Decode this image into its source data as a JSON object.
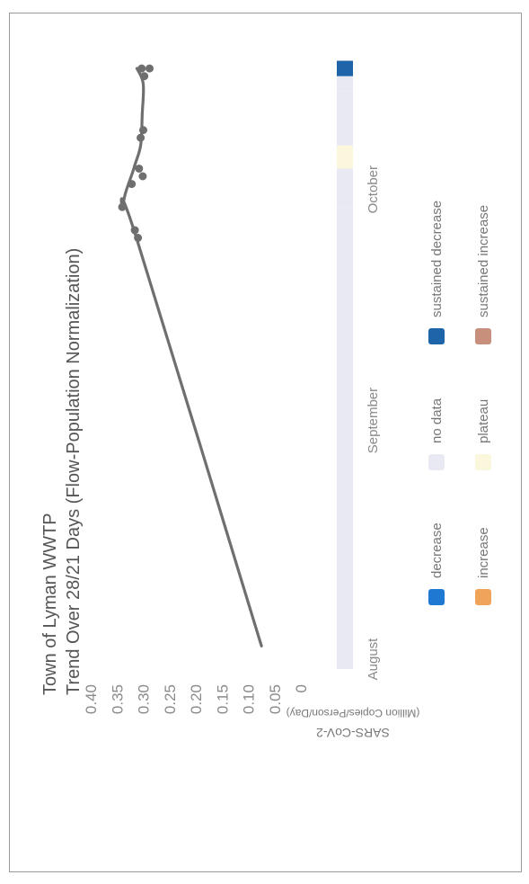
{
  "chart_data": {
    "type": "line",
    "title": "Town of Lyman WWTP",
    "subtitle": "Trend Over 28/21 Days (Flow-Population Normalization)",
    "ylabel": "SARS-CoV-2",
    "ylabel_units": "(Million Copies/Person/Day)",
    "ylim": [
      0,
      0.4
    ],
    "yticks": [
      "0",
      "0.05",
      "0.10",
      "0.15",
      "0.20",
      "0.25",
      "0.30",
      "0.35",
      "0.40"
    ],
    "x_tick_labels": [
      "August",
      "September",
      "October"
    ],
    "x_tick_day": [
      0,
      31,
      61
    ],
    "trend_line": [
      {
        "x": 3,
        "y": 0.075
      },
      {
        "x": 56,
        "y": 0.313
      },
      {
        "x": 60,
        "y": 0.338
      },
      {
        "x": 65,
        "y": 0.318
      },
      {
        "x": 68,
        "y": 0.305
      },
      {
        "x": 72,
        "y": 0.302
      },
      {
        "x": 76,
        "y": 0.3
      },
      {
        "x": 78,
        "y": 0.312
      }
    ],
    "samples": [
      {
        "x": 56,
        "y": 0.31
      },
      {
        "x": 57,
        "y": 0.316
      },
      {
        "x": 60,
        "y": 0.34
      },
      {
        "x": 63,
        "y": 0.322
      },
      {
        "x": 64,
        "y": 0.301
      },
      {
        "x": 65,
        "y": 0.308
      },
      {
        "x": 69,
        "y": 0.305
      },
      {
        "x": 70,
        "y": 0.3
      },
      {
        "x": 77,
        "y": 0.298
      },
      {
        "x": 78,
        "y": 0.288
      },
      {
        "x": 78,
        "y": 0.303
      }
    ],
    "trend_strip": [
      {
        "from": 0,
        "to": 56,
        "category": "no data"
      },
      {
        "from": 56,
        "to": 60,
        "category": "no data"
      },
      {
        "from": 60,
        "to": 65,
        "category": "no data"
      },
      {
        "from": 65,
        "to": 68,
        "category": "plateau"
      },
      {
        "from": 68,
        "to": 75,
        "category": "no data"
      },
      {
        "from": 75,
        "to": 77,
        "category": "no data"
      },
      {
        "from": 77,
        "to": 79,
        "category": "sustained decrease"
      }
    ],
    "legend": [
      {
        "label": "decrease",
        "color": "#1f78d2"
      },
      {
        "label": "no data",
        "color": "#e9e9f3"
      },
      {
        "label": "sustained decrease",
        "color": "#1d64a8"
      },
      {
        "label": "increase",
        "color": "#f0a45a"
      },
      {
        "label": "plateau",
        "color": "#fbf7dc"
      },
      {
        "label": "sustained increase",
        "color": "#c98f7d"
      }
    ],
    "legend_placement": "bottom",
    "grid": false,
    "line_color": "#6f6f6f",
    "point_color": "#6f6f6f",
    "axis_text_color": "#8a8a8a",
    "title_color": "#555555"
  }
}
